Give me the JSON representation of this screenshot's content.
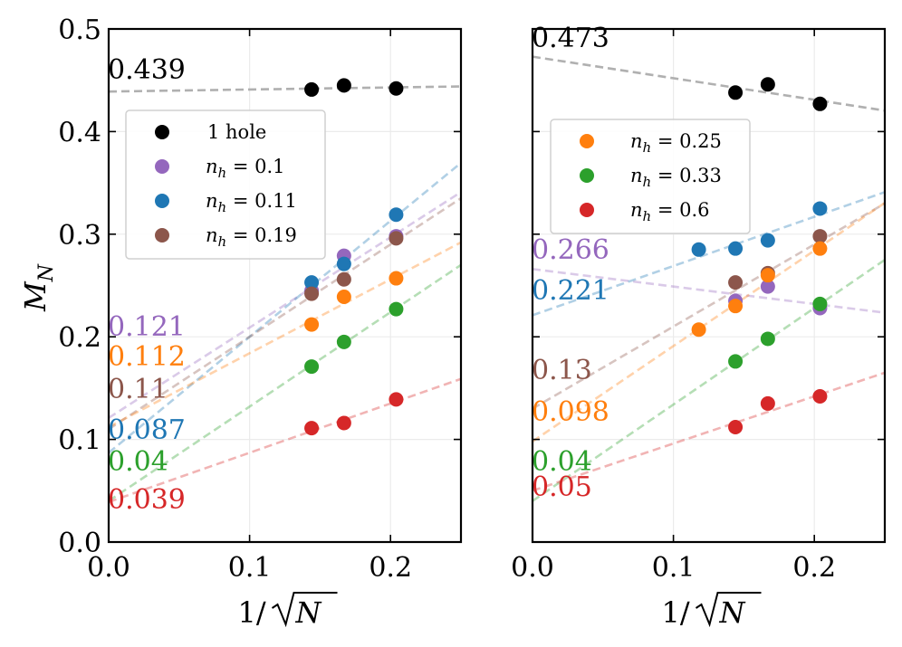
{
  "figure": {
    "ylabel_main": "M",
    "ylabel_sub": "N"
  },
  "chart_data": [
    {
      "type": "scatter",
      "panel": "left",
      "xlabel": "1/√N",
      "xlabel_prefix": "1/",
      "xlabel_var": "N",
      "ylabel": "M_N",
      "xlim": [
        0,
        0.25
      ],
      "ylim": [
        0,
        0.5
      ],
      "xticks": [
        0.0,
        0.1,
        0.2
      ],
      "xtick_labels": [
        "0.0",
        "0.1",
        "0.2"
      ],
      "yticks": [
        0.0,
        0.1,
        0.2,
        0.3,
        0.4,
        0.5
      ],
      "ytick_labels": [
        "0.0",
        "0.1",
        "0.2",
        "0.3",
        "0.4",
        "0.5"
      ],
      "legend_position": "upper-left",
      "series": [
        {
          "name": "1 hole",
          "legend_label": "1 hole",
          "legend_math": false,
          "color": "#000000",
          "x": [
            0.144,
            0.167,
            0.204
          ],
          "y": [
            0.441,
            0.445,
            0.442
          ],
          "fit_intercept": 0.439,
          "fit_slope": 0.02,
          "intercept_label": "0.439",
          "fit_color": "#b0b0b0"
        },
        {
          "name": "n_h = 0.1",
          "legend_label": "n",
          "legend_sub": "h",
          "legend_value": " = 0.1",
          "legend_math": true,
          "color": "#9467bd",
          "x": [
            0.144,
            0.167,
            0.204
          ],
          "y": [
            0.245,
            0.279,
            0.298
          ],
          "fit_intercept": 0.121,
          "fit_slope": 0.88,
          "intercept_label": "0.121"
        },
        {
          "name": "n_h = 0.11",
          "legend_label": "n",
          "legend_sub": "h",
          "legend_value": " = 0.11",
          "legend_math": true,
          "color": "#1f77b4",
          "x": [
            0.144,
            0.167,
            0.204
          ],
          "y": [
            0.253,
            0.271,
            0.319
          ],
          "fit_intercept": 0.087,
          "fit_slope": 1.13,
          "intercept_label": "0.087"
        },
        {
          "name": "n_h = 0.19",
          "legend_label": "n",
          "legend_sub": "h",
          "legend_value": " = 0.19",
          "legend_math": true,
          "color": "#8c564b",
          "x": [
            0.144,
            0.167,
            0.204
          ],
          "y": [
            0.242,
            0.256,
            0.296
          ],
          "fit_intercept": 0.11,
          "fit_slope": 0.9,
          "intercept_label": "0.11"
        },
        {
          "name": "n_h = 0.25",
          "legend_label": "",
          "legend_math": true,
          "in_legend": false,
          "color": "#ff7f0e",
          "x": [
            0.144,
            0.167,
            0.204
          ],
          "y": [
            0.212,
            0.239,
            0.257
          ],
          "fit_intercept": 0.112,
          "fit_slope": 0.72,
          "intercept_label": "0.112"
        },
        {
          "name": "n_h = 0.33",
          "legend_label": "",
          "legend_math": true,
          "in_legend": false,
          "color": "#2ca02c",
          "x": [
            0.144,
            0.167,
            0.204
          ],
          "y": [
            0.171,
            0.195,
            0.227
          ],
          "fit_intercept": 0.04,
          "fit_slope": 0.92,
          "intercept_label": "0.04"
        },
        {
          "name": "n_h = 0.6",
          "legend_label": "",
          "legend_math": true,
          "in_legend": false,
          "color": "#d62728",
          "x": [
            0.144,
            0.167,
            0.204
          ],
          "y": [
            0.111,
            0.116,
            0.139
          ],
          "fit_intercept": 0.039,
          "fit_slope": 0.48,
          "intercept_label": "0.039"
        }
      ]
    },
    {
      "type": "scatter",
      "panel": "right",
      "xlabel": "1/√N",
      "xlabel_prefix": "1/",
      "xlabel_var": "N",
      "xlim": [
        0,
        0.25
      ],
      "ylim": [
        0,
        0.5
      ],
      "xticks": [
        0.0,
        0.1,
        0.2
      ],
      "xtick_labels": [
        "0.0",
        "0.1",
        "0.2"
      ],
      "yticks": [
        0.0,
        0.1,
        0.2,
        0.3,
        0.4,
        0.5
      ],
      "ytick_labels": [],
      "legend_position": "upper-left",
      "series": [
        {
          "name": "1 hole",
          "in_legend": false,
          "color": "#000000",
          "x": [
            0.144,
            0.167,
            0.204
          ],
          "y": [
            0.438,
            0.446,
            0.427
          ],
          "fit_intercept": 0.473,
          "fit_slope": -0.21,
          "intercept_label": "0.473",
          "fit_color": "#b0b0b0"
        },
        {
          "name": "n_h = 0.1",
          "in_legend": false,
          "color": "#9467bd",
          "x": [
            0.144,
            0.167,
            0.204
          ],
          "y": [
            0.235,
            0.249,
            0.228
          ],
          "fit_intercept": 0.266,
          "fit_slope": -0.17,
          "intercept_label": "0.266"
        },
        {
          "name": "n_h = 0.11",
          "in_legend": false,
          "color": "#1f77b4",
          "x": [
            0.118,
            0.144,
            0.167,
            0.204
          ],
          "y": [
            0.285,
            0.286,
            0.294,
            0.325
          ],
          "fit_intercept": 0.221,
          "fit_slope": 0.48,
          "intercept_label": "0.221"
        },
        {
          "name": "n_h = 0.19",
          "in_legend": false,
          "color": "#8c564b",
          "x": [
            0.144,
            0.167,
            0.204
          ],
          "y": [
            0.253,
            0.262,
            0.298
          ],
          "fit_intercept": 0.13,
          "fit_slope": 0.8,
          "intercept_label": "0.13"
        },
        {
          "name": "n_h = 0.25",
          "legend_label": "n",
          "legend_sub": "h",
          "legend_value": " = 0.25",
          "legend_math": true,
          "color": "#ff7f0e",
          "x": [
            0.118,
            0.144,
            0.167,
            0.204
          ],
          "y": [
            0.207,
            0.23,
            0.26,
            0.286
          ],
          "fit_intercept": 0.098,
          "fit_slope": 0.93,
          "intercept_label": "0.098"
        },
        {
          "name": "n_h = 0.33",
          "legend_label": "n",
          "legend_sub": "h",
          "legend_value": " = 0.33",
          "legend_math": true,
          "color": "#2ca02c",
          "x": [
            0.144,
            0.167,
            0.204
          ],
          "y": [
            0.176,
            0.198,
            0.232
          ],
          "fit_intercept": 0.04,
          "fit_slope": 0.94,
          "intercept_label": "0.04"
        },
        {
          "name": "n_h = 0.6",
          "legend_label": "n",
          "legend_sub": "h",
          "legend_value": " = 0.6",
          "legend_math": true,
          "color": "#d62728",
          "x": [
            0.144,
            0.167,
            0.204
          ],
          "y": [
            0.112,
            0.135,
            0.142
          ],
          "fit_intercept": 0.05,
          "fit_slope": 0.46,
          "intercept_label": "0.05"
        }
      ]
    }
  ]
}
